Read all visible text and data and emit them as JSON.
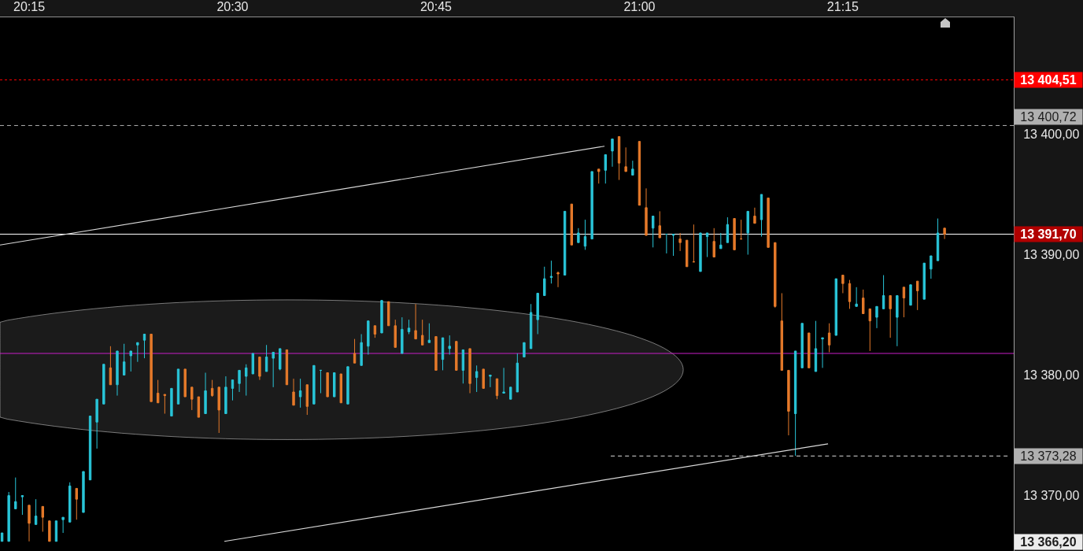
{
  "chart_data": {
    "type": "candlestick",
    "x": [
      20.2167,
      20.225,
      20.2333,
      20.2417,
      20.25,
      20.2583,
      20.2667,
      20.275,
      20.2833,
      20.2917,
      20.3,
      20.3083,
      20.3167,
      20.325,
      20.3333,
      20.3417,
      20.35,
      20.3583,
      20.3667,
      20.375,
      20.3833,
      20.3917,
      20.4,
      20.4083,
      20.4167,
      20.425,
      20.4333,
      20.4417,
      20.45,
      20.4583,
      20.4667,
      20.475,
      20.4833,
      20.4917,
      20.5,
      20.5083,
      20.5167,
      20.525,
      20.5333,
      20.5417,
      20.55,
      20.5583,
      20.5667,
      20.575,
      20.5833,
      20.5917,
      20.6,
      20.6083,
      20.6167,
      20.625,
      20.6333,
      20.6417,
      20.65,
      20.6583,
      20.6667,
      20.675,
      20.6833,
      20.6917,
      20.7,
      20.7083,
      20.7167,
      20.725,
      20.7333,
      20.7417,
      20.75,
      20.7583,
      20.7667,
      20.775,
      20.7833,
      20.7917,
      20.8,
      20.8083,
      20.8167,
      20.825,
      20.8333,
      20.8417,
      20.85,
      20.8583,
      20.8667,
      20.875,
      20.8833,
      20.8917,
      20.9,
      20.9083,
      20.9167,
      20.925,
      20.9333,
      20.9417,
      20.95,
      20.9583,
      20.9667,
      20.975,
      20.9833,
      20.9917,
      21,
      21.0083,
      21.0167,
      21.025,
      21.0333,
      21.0417,
      21.05,
      21.0583,
      21.0667,
      21.075,
      21.0833,
      21.0917,
      21.1,
      21.1083,
      21.1167,
      21.125,
      21.1333,
      21.1417,
      21.15,
      21.1583,
      21.1667,
      21.175,
      21.1833,
      21.1917,
      21.2,
      21.2083,
      21.2167,
      21.225,
      21.2333,
      21.2417,
      21.25,
      21.2583,
      21.2667,
      21.275,
      21.2833,
      21.2917,
      21.3,
      21.3083,
      21.3167,
      21.325,
      21.3333,
      21.3417,
      21.35,
      21.3583,
      21.3667,
      21.375
    ],
    "ohlc": [
      [
        13366.2,
        13366.9,
        13366.2,
        13366.9
      ],
      [
        13366.2,
        13370.3,
        13366.2,
        13370.0
      ],
      [
        13368.9,
        13371.5,
        13368.9,
        13369.5
      ],
      [
        13369.9,
        13370.0,
        13368.4,
        13370.0
      ],
      [
        13369.2,
        13369.2,
        13366.2,
        13367.7
      ],
      [
        13367.6,
        13369.7,
        13367.6,
        13368.3
      ],
      [
        13369.1,
        13369.1,
        13367.0,
        13368.2
      ],
      [
        13367.9,
        13367.9,
        13366.2,
        13366.2
      ],
      [
        13366.2,
        13367.9,
        13366.2,
        13367.9
      ],
      [
        13368.0,
        13368.2,
        13366.9,
        13368.2
      ],
      [
        13367.8,
        13371.1,
        13367.8,
        13370.8
      ],
      [
        13370.6,
        13370.6,
        13368.0,
        13369.7
      ],
      [
        13368.6,
        13372.0,
        13368.6,
        13372.0
      ],
      [
        13371.3,
        13376.6,
        13371.3,
        13376.6
      ],
      [
        13376.1,
        13378.0,
        13373.9,
        13378.0
      ],
      [
        13377.6,
        13380.9,
        13377.6,
        13380.9
      ],
      [
        13380.6,
        13382.4,
        13379.2,
        13379.2
      ],
      [
        13379.2,
        13382.0,
        13378.3,
        13382.0
      ],
      [
        13380.0,
        13382.6,
        13380.0,
        13381.1
      ],
      [
        13381.6,
        13382.0,
        13380.3,
        13382.0
      ],
      [
        13382.5,
        13382.7,
        13381.1,
        13382.7
      ],
      [
        13382.9,
        13383.4,
        13381.4,
        13383.4
      ],
      [
        13383.4,
        13383.4,
        13377.8,
        13377.8
      ],
      [
        13378.5,
        13379.6,
        13377.7,
        13377.7
      ],
      [
        13378.4,
        13378.4,
        13376.8,
        13378.3
      ],
      [
        13376.6,
        13378.9,
        13376.6,
        13378.9
      ],
      [
        13377.6,
        13380.5,
        13377.6,
        13380.5
      ],
      [
        13380.5,
        13380.5,
        13378.2,
        13378.2
      ],
      [
        13379.0,
        13379.0,
        13377.1,
        13378.0
      ],
      [
        13378.2,
        13378.2,
        13376.5,
        13376.5
      ],
      [
        13376.8,
        13380.2,
        13376.8,
        13378.7
      ],
      [
        13378.9,
        13379.6,
        13378.2,
        13378.3
      ],
      [
        13379.0,
        13379.0,
        13375.2,
        13377.1
      ],
      [
        13376.8,
        13379.9,
        13376.8,
        13379.0
      ],
      [
        13378.9,
        13379.6,
        13377.9,
        13379.6
      ],
      [
        13379.3,
        13380.4,
        13378.6,
        13380.4
      ],
      [
        13379.9,
        13380.9,
        13378.3,
        13380.6
      ],
      [
        13380.1,
        13381.8,
        13380.1,
        13381.8
      ],
      [
        13381.5,
        13381.5,
        13379.6,
        13379.9
      ],
      [
        13380.3,
        13382.5,
        13380.3,
        13381.5
      ],
      [
        13381.4,
        13381.9,
        13379.0,
        13381.9
      ],
      [
        13380.5,
        13382.2,
        13380.4,
        13382.2
      ],
      [
        13382.1,
        13382.1,
        13379.2,
        13379.2
      ],
      [
        13378.6,
        13379.7,
        13377.5,
        13377.5
      ],
      [
        13378.2,
        13379.7,
        13377.3,
        13378.7
      ],
      [
        13379.2,
        13379.2,
        13376.7,
        13377.4
      ],
      [
        13377.6,
        13380.8,
        13377.6,
        13380.8
      ],
      [
        13380.4,
        13380.4,
        13378.5,
        13380.4
      ],
      [
        13380.2,
        13380.2,
        13378.2,
        13378.2
      ],
      [
        13378.2,
        13380.2,
        13378.2,
        13380.2
      ],
      [
        13380.1,
        13380.1,
        13377.7,
        13377.7
      ],
      [
        13377.6,
        13380.7,
        13377.6,
        13380.7
      ],
      [
        13381.8,
        13383.0,
        13381.0,
        13381.0
      ],
      [
        13380.8,
        13383.4,
        13380.8,
        13382.7
      ],
      [
        13382.4,
        13384.5,
        13381.7,
        13384.5
      ],
      [
        13384.1,
        13384.1,
        13383.1,
        13383.4
      ],
      [
        13383.5,
        13386.2,
        13383.5,
        13386.2
      ],
      [
        13386.1,
        13386.1,
        13384.1,
        13384.1
      ],
      [
        13384.1,
        13384.6,
        13382.3,
        13382.3
      ],
      [
        13381.8,
        13384.8,
        13381.8,
        13383.8
      ],
      [
        13383.6,
        13384.6,
        13383.4,
        13383.9
      ],
      [
        13383.7,
        13385.9,
        13383.0,
        13383.0
      ],
      [
        13383.3,
        13384.6,
        13382.5,
        13382.5
      ],
      [
        13382.7,
        13384.3,
        13382.7,
        13382.9
      ],
      [
        13383.2,
        13383.2,
        13380.4,
        13380.4
      ],
      [
        13381.3,
        13383.1,
        13380.4,
        13383.1
      ],
      [
        13382.2,
        13383.3,
        13381.7,
        13382.4
      ],
      [
        13382.8,
        13382.8,
        13380.4,
        13380.4
      ],
      [
        13380.4,
        13382.1,
        13379.3,
        13382.1
      ],
      [
        13382.2,
        13382.2,
        13378.5,
        13379.3
      ],
      [
        13379.8,
        13380.8,
        13378.6,
        13380.3
      ],
      [
        13380.5,
        13380.5,
        13378.9,
        13378.9
      ],
      [
        13379.9,
        13380.0,
        13379.0,
        13380.0
      ],
      [
        13379.7,
        13379.7,
        13378.0,
        13378.3
      ],
      [
        13378.5,
        13380.6,
        13378.5,
        13378.6
      ],
      [
        13378.0,
        13379.0,
        13378.0,
        13379.0
      ],
      [
        13378.6,
        13381.8,
        13378.6,
        13381.0
      ],
      [
        13381.5,
        13382.7,
        13381.5,
        13382.7
      ],
      [
        13382.2,
        13385.9,
        13382.2,
        13385.2
      ],
      [
        13384.6,
        13386.8,
        13383.4,
        13386.8
      ],
      [
        13386.6,
        13389.0,
        13386.6,
        13388.0
      ],
      [
        13388.1,
        13389.5,
        13387.6,
        13388.2
      ],
      [
        13388.5,
        13388.6,
        13387.3,
        13388.4
      ],
      [
        13388.3,
        13393.6,
        13388.3,
        13393.6
      ],
      [
        13394.2,
        13394.2,
        13390.8,
        13390.8
      ],
      [
        13391.0,
        13392.2,
        13391.0,
        13391.8
      ],
      [
        13390.7,
        13392.9,
        13390.4,
        13391.5
      ],
      [
        13391.3,
        13396.9,
        13391.3,
        13396.9
      ],
      [
        13397.1,
        13397.1,
        13395.9,
        13396.9
      ],
      [
        13397.0,
        13398.3,
        13395.9,
        13398.3
      ],
      [
        13398.6,
        13399.6,
        13397.3,
        13399.6
      ],
      [
        13399.8,
        13399.8,
        13396.2,
        13397.6
      ],
      [
        13397.3,
        13398.9,
        13396.9,
        13396.9
      ],
      [
        13396.6,
        13397.8,
        13396.6,
        13397.1
      ],
      [
        13399.4,
        13399.4,
        13394.1,
        13394.1
      ],
      [
        13393.9,
        13395.5,
        13391.6,
        13391.6
      ],
      [
        13392.2,
        13393.2,
        13390.6,
        13393.2
      ],
      [
        13392.4,
        13393.6,
        13391.4,
        13391.4
      ],
      [
        13391.7,
        13391.7,
        13390.1,
        13391.7
      ],
      [
        13391.6,
        13391.7,
        13389.9,
        13391.7
      ],
      [
        13391.3,
        13391.8,
        13390.3,
        13391.0
      ],
      [
        13391.2,
        13391.2,
        13389.0,
        13389.0
      ],
      [
        13389.4,
        13392.5,
        13389.4,
        13389.4
      ],
      [
        13388.6,
        13391.8,
        13388.6,
        13391.8
      ],
      [
        13391.5,
        13391.8,
        13389.8,
        13391.8
      ],
      [
        13391.1,
        13392.2,
        13389.8,
        13389.8
      ],
      [
        13390.5,
        13391.8,
        13390.5,
        13390.8
      ],
      [
        13391.0,
        13393.1,
        13391.0,
        13392.5
      ],
      [
        13393.0,
        13393.0,
        13390.4,
        13390.4
      ],
      [
        13391.3,
        13392.9,
        13391.3,
        13391.3
      ],
      [
        13391.8,
        13393.6,
        13390.0,
        13393.6
      ],
      [
        13393.2,
        13393.9,
        13392.6,
        13392.6
      ],
      [
        13392.9,
        13395.0,
        13391.5,
        13395.0
      ],
      [
        13394.7,
        13394.7,
        13390.6,
        13390.6
      ],
      [
        13391.0,
        13391.0,
        13385.6,
        13385.7
      ],
      [
        13384.5,
        13386.8,
        13380.4,
        13380.4
      ],
      [
        13380.4,
        13380.4,
        13375.0,
        13377.0
      ],
      [
        13376.8,
        13382.0,
        13373.3,
        13382.0
      ],
      [
        13380.6,
        13384.3,
        13380.6,
        13384.3
      ],
      [
        13383.5,
        13383.5,
        13380.6,
        13380.6
      ],
      [
        13380.3,
        13384.5,
        13380.3,
        13382.2
      ],
      [
        13383.0,
        13383.1,
        13380.6,
        13383.1
      ],
      [
        13383.5,
        13384.3,
        13381.9,
        13382.5
      ],
      [
        13383.3,
        13388.0,
        13383.3,
        13388.0
      ],
      [
        13388.3,
        13388.3,
        13386.8,
        13387.6
      ],
      [
        13387.6,
        13387.9,
        13385.5,
        13386.1
      ],
      [
        13385.7,
        13387.3,
        13385.7,
        13385.9
      ],
      [
        13386.4,
        13387.1,
        13385.1,
        13385.1
      ],
      [
        13385.5,
        13385.5,
        13382.0,
        13384.5
      ],
      [
        13384.8,
        13385.7,
        13383.9,
        13385.7
      ],
      [
        13385.5,
        13388.3,
        13385.5,
        13386.6
      ],
      [
        13386.6,
        13386.6,
        13383.1,
        13385.5
      ],
      [
        13384.8,
        13386.6,
        13382.4,
        13386.6
      ],
      [
        13387.3,
        13387.3,
        13384.8,
        13386.4
      ],
      [
        13385.8,
        13387.5,
        13385.8,
        13387.5
      ],
      [
        13387.8,
        13387.8,
        13385.4,
        13387.0
      ],
      [
        13386.3,
        13389.3,
        13386.3,
        13389.3
      ],
      [
        13388.8,
        13389.9,
        13388.0,
        13389.9
      ],
      [
        13389.5,
        13393.0,
        13389.5,
        13391.8
      ],
      [
        13392.2,
        13392.2,
        13391.3,
        13391.7
      ]
    ],
    "colors": [
      "#29c5d8",
      "#29c5d8",
      "#29c5d8",
      "#29c5d8",
      "#e67a2a",
      "#29c5d8",
      "#e67a2a",
      "#e67a2a",
      "#29c5d8",
      "#29c5d8",
      "#29c5d8",
      "#e67a2a",
      "#29c5d8",
      "#29c5d8",
      "#29c5d8",
      "#29c5d8",
      "#e67a2a",
      "#29c5d8",
      "#29c5d8",
      "#29c5d8",
      "#29c5d8",
      "#29c5d8",
      "#e67a2a",
      "#e67a2a",
      "#e67a2a",
      "#29c5d8",
      "#29c5d8",
      "#e67a2a",
      "#e67a2a",
      "#e67a2a",
      "#29c5d8",
      "#e67a2a",
      "#e67a2a",
      "#29c5d8",
      "#29c5d8",
      "#29c5d8",
      "#29c5d8",
      "#29c5d8",
      "#e67a2a",
      "#29c5d8",
      "#29c5d8",
      "#29c5d8",
      "#e67a2a",
      "#e67a2a",
      "#29c5d8",
      "#e67a2a",
      "#29c5d8",
      "#29c5d8",
      "#e67a2a",
      "#29c5d8",
      "#e67a2a",
      "#29c5d8",
      "#e67a2a",
      "#29c5d8",
      "#29c5d8",
      "#e67a2a",
      "#29c5d8",
      "#e67a2a",
      "#e67a2a",
      "#29c5d8",
      "#29c5d8",
      "#e67a2a",
      "#e67a2a",
      "#29c5d8",
      "#e67a2a",
      "#29c5d8",
      "#29c5d8",
      "#e67a2a",
      "#29c5d8",
      "#e67a2a",
      "#29c5d8",
      "#e67a2a",
      "#29c5d8",
      "#e67a2a",
      "#29c5d8",
      "#29c5d8",
      "#29c5d8",
      "#29c5d8",
      "#29c5d8",
      "#29c5d8",
      "#29c5d8",
      "#29c5d8",
      "#e67a2a",
      "#29c5d8",
      "#e67a2a",
      "#29c5d8",
      "#29c5d8",
      "#29c5d8",
      "#e67a2a",
      "#29c5d8",
      "#29c5d8",
      "#e67a2a",
      "#e67a2a",
      "#29c5d8",
      "#e67a2a",
      "#e67a2a",
      "#29c5d8",
      "#e67a2a",
      "#29c5d8",
      "#29c5d8",
      "#e67a2a",
      "#e67a2a",
      "#e67a2a",
      "#29c5d8",
      "#29c5d8",
      "#e67a2a",
      "#29c5d8",
      "#29c5d8",
      "#e67a2a",
      "#e67a2a",
      "#29c5d8",
      "#e67a2a",
      "#29c5d8",
      "#e67a2a",
      "#e67a2a",
      "#e67a2a",
      "#e67a2a",
      "#29c5d8",
      "#29c5d8",
      "#e67a2a",
      "#29c5d8",
      "#29c5d8",
      "#e67a2a",
      "#29c5d8",
      "#e67a2a",
      "#e67a2a",
      "#29c5d8",
      "#e67a2a",
      "#e67a2a",
      "#29c5d8",
      "#29c5d8",
      "#e67a2a",
      "#29c5d8",
      "#e67a2a",
      "#29c5d8",
      "#e67a2a",
      "#29c5d8",
      "#29c5d8",
      "#29c5d8",
      "#e67a2a"
    ],
    "series": [
      {
        "type": "line",
        "x": [
          20.2142,
          20.9571
        ],
        "values": [
          13390.8,
          13399.0
        ],
        "color": "#d9d9d9"
      },
      {
        "type": "line",
        "x": [
          20.4899,
          21.2318
        ],
        "values": [
          13366.2,
          13374.3
        ],
        "color": "#d9d9d9"
      },
      {
        "type": "line",
        "x": [
          20.9648,
          21.4524
        ],
        "values": [
          13373.28,
          13373.28
        ],
        "color": "#b0b0b0",
        "line_style": "dashed",
        "name": "13 373,28"
      }
    ],
    "xlim": [
      20.2142,
      21.46
    ],
    "xticks": [
      {
        "value": 20.25,
        "label": "20:15"
      },
      {
        "value": 20.5,
        "label": "20:30"
      },
      {
        "value": 20.75,
        "label": "20:45"
      },
      {
        "value": 21,
        "label": "21:00"
      },
      {
        "value": 21.25,
        "label": "21:15"
      }
    ],
    "ylim": [
      13365.4,
      13409.7
    ],
    "yticks": [
      {
        "value": 13370,
        "label": "13 370,00"
      },
      {
        "value": 13380,
        "label": "13 380,00"
      },
      {
        "value": 13390,
        "label": "13 390,00"
      },
      {
        "value": 13400,
        "label": "13 400,00"
      }
    ],
    "ref_lines": [
      {
        "axis": "y",
        "value": 13404.51,
        "label": "13 404,51",
        "color": "#ff0000",
        "line_style": "dotted"
      },
      {
        "axis": "y",
        "value": 13400.72,
        "label": "13 400,72",
        "color": "#b0b0b0",
        "line_style": "dashed"
      },
      {
        "axis": "y",
        "value": 13391.7,
        "label": "13 391,70",
        "color": "#ffffff",
        "line_style": "solid"
      },
      {
        "axis": "y",
        "value": 13381.8,
        "color": "#c81ec8",
        "line_style": "solid"
      }
    ],
    "annotations": [
      "13 366,20"
    ],
    "grid": false,
    "legend": false
  }
}
